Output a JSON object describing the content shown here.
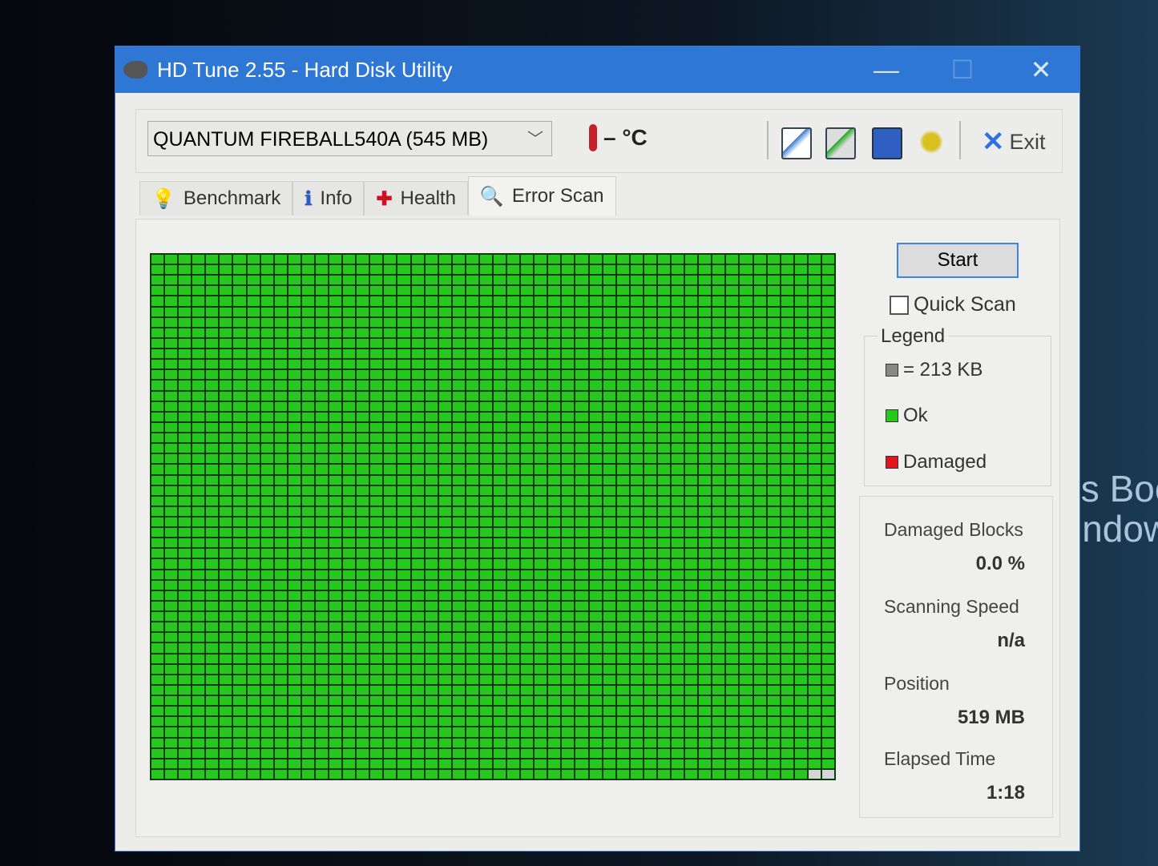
{
  "background_text": "'s Boo\nindow",
  "window": {
    "title": "HD Tune 2.55 - Hard Disk Utility",
    "minimize": "—",
    "maximize": "☐",
    "close": "✕"
  },
  "toolbar": {
    "drive": "QUANTUM FIREBALL540A (545 MB)",
    "temperature": "– °C",
    "icons": [
      "copy-text-icon",
      "copy-screenshot-icon",
      "save-icon",
      "options-icon"
    ],
    "exit_label": "Exit"
  },
  "tabs": [
    {
      "label": "Benchmark",
      "icon": "lightbulb-icon",
      "glyph": "💡"
    },
    {
      "label": "Info",
      "icon": "info-icon",
      "glyph": "ℹ"
    },
    {
      "label": "Health",
      "icon": "health-cross-icon",
      "glyph": "✚"
    },
    {
      "label": "Error Scan",
      "icon": "magnifier-icon",
      "glyph": "🔍",
      "active": true
    }
  ],
  "scan": {
    "blocks_total": 2500,
    "blocks_pending": 2,
    "colors": {
      "ok": "#27c81e",
      "damaged": "#e0141e",
      "pending": "#d5d5d8",
      "block": "#888888"
    }
  },
  "controls": {
    "start_label": "Start",
    "quick_scan_label": "Quick Scan",
    "quick_scan_checked": false
  },
  "legend": {
    "title": "Legend",
    "block_size": "= 213 KB",
    "ok": "Ok",
    "damaged": "Damaged"
  },
  "stats": {
    "damaged_blocks_label": "Damaged Blocks",
    "damaged_blocks": "0.0 %",
    "scanning_speed_label": "Scanning Speed",
    "scanning_speed": "n/a",
    "position_label": "Position",
    "position": "519 MB",
    "elapsed_label": "Elapsed Time",
    "elapsed": "1:18"
  }
}
